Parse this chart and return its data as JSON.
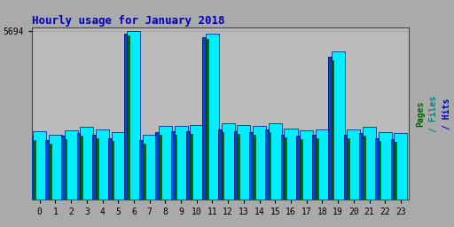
{
  "title": "Hourly usage for January 2018",
  "hours": [
    0,
    1,
    2,
    3,
    4,
    5,
    6,
    7,
    8,
    9,
    10,
    11,
    12,
    13,
    14,
    15,
    16,
    17,
    18,
    19,
    20,
    21,
    22,
    23
  ],
  "hits": [
    2300,
    2200,
    2350,
    2450,
    2380,
    2280,
    5694,
    2200,
    2480,
    2500,
    2520,
    5600,
    2580,
    2520,
    2480,
    2580,
    2400,
    2350,
    2380,
    5000,
    2380,
    2450,
    2280,
    2250
  ],
  "files": [
    2100,
    2000,
    2150,
    2250,
    2180,
    2080,
    5580,
    2000,
    2280,
    2300,
    2320,
    5480,
    2380,
    2320,
    2280,
    2380,
    2200,
    2150,
    2180,
    4800,
    2180,
    2250,
    2080,
    2050
  ],
  "pages": [
    2000,
    1900,
    2050,
    2150,
    2080,
    1980,
    5520,
    1900,
    2180,
    2200,
    2220,
    5420,
    2280,
    2220,
    2180,
    2280,
    2100,
    2050,
    2080,
    4700,
    2080,
    2150,
    1980,
    1950
  ],
  "ymax": 5694,
  "bar_color_hits": "#00EEFF",
  "bar_color_files": "#0044DD",
  "bar_color_pages": "#006600",
  "bar_edge_hits": "#003399",
  "bar_edge_files": "#001166",
  "bar_edge_pages": "#003300",
  "bg_color": "#AAAAAA",
  "plot_bg": "#BBBBBB",
  "title_color": "#0000BB",
  "grid_color": "#999999"
}
